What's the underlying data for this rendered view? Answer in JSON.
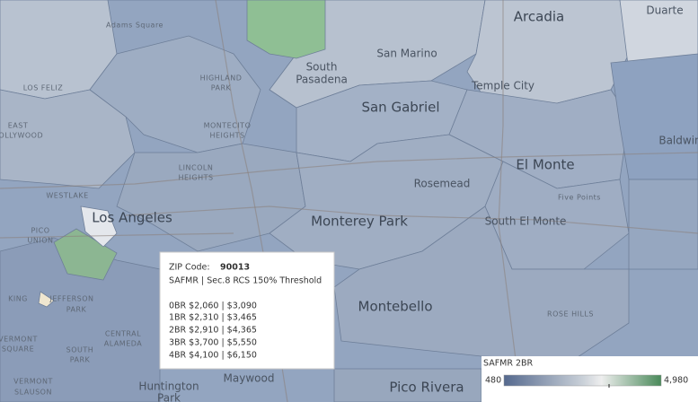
{
  "places": [
    "Adams Square",
    "Arcadia",
    "Duarte",
    "San Marino",
    "South",
    "Pasadena",
    "LOS FELIZ",
    "HIGHLAND",
    "PARK",
    "Temple City",
    "San Gabriel",
    "EAST",
    "HOLLYWOOD",
    "MONTECITO",
    "HEIGHTS",
    "LINCOLN",
    "HEIGHTS",
    "El Monte",
    "Baldwin",
    "Rosemead",
    "Five Points",
    "WESTLAKE",
    "Los Angeles",
    "Monterey Park",
    "South El Monte",
    "PICO",
    "UNION",
    "KING",
    "JEFFERSON",
    "PARK",
    "Montebello",
    "ROSE HILLS",
    "VERMONT",
    "SQUARE",
    "CENTRAL",
    "ALAMEDA",
    "SOUTH",
    "PARK",
    "Huntington",
    "Park",
    "Maywood",
    "Pico Rivera",
    "VERMONT",
    "SLAUSON"
  ],
  "tooltip": {
    "zip_label": "ZIP Code:",
    "zip": "90013",
    "subtitle": "SAFMR | Sec.8 RCS 150% Threshold",
    "rows": [
      "0BR $2,060 | $3,090",
      "1BR $2,310 | $3,465",
      "2BR $2,910 | $4,365",
      "3BR $3,700 | $5,550",
      "4BR $4,100 | $6,150"
    ]
  },
  "legend": {
    "title": "SAFMR 2BR",
    "min": "480",
    "max": "4,980"
  }
}
